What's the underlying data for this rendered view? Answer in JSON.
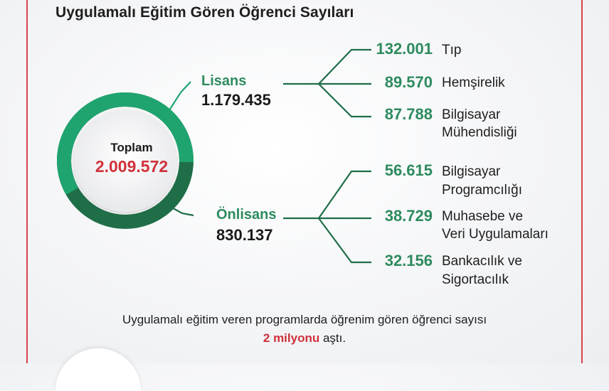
{
  "title": "Uygulamalı Eğitim Gören Öğrenci Sayıları",
  "center": {
    "label": "Toplam",
    "total": "2.009.572"
  },
  "groups": [
    {
      "name": "Lisans",
      "total": "1.179.435",
      "share": 0.587,
      "items": [
        {
          "value": "132.001",
          "label_lines": [
            "Tıp"
          ]
        },
        {
          "value": "89.570",
          "label_lines": [
            "Hemşirelik"
          ]
        },
        {
          "value": "87.788",
          "label_lines": [
            "Bilgisayar",
            "Mühendisliği"
          ]
        }
      ]
    },
    {
      "name": "Önlisans",
      "total": "830.137",
      "share": 0.413,
      "items": [
        {
          "value": "56.615",
          "label_lines": [
            "Bilgisayar",
            "Programcılığı"
          ]
        },
        {
          "value": "38.729",
          "label_lines": [
            "Muhasebe ve",
            "Veri Uygulamaları"
          ]
        },
        {
          "value": "32.156",
          "label_lines": [
            "Bankacılık ve",
            "Sigortacılık"
          ]
        }
      ]
    }
  ],
  "footer": {
    "line1": "Uygulamalı eğitim veren programlarda öğrenim gören öğrenci sayısı",
    "highlight": "2 milyonu",
    "rest": " aştı."
  },
  "colors": {
    "green_light": "#1fa46f",
    "green_dark": "#1f6e48",
    "text_green": "#2e8b5e",
    "accent_red": "#d0313a",
    "frame_red": "#d9434a"
  }
}
